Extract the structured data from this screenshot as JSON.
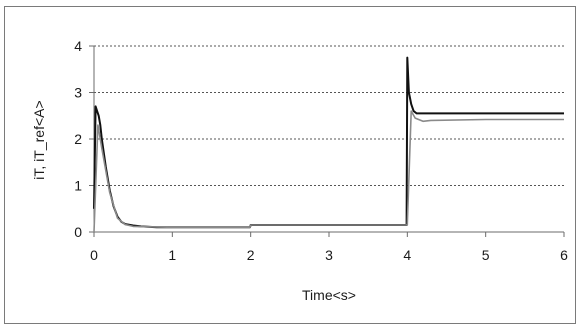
{
  "chart_data": {
    "type": "line",
    "xlabel": "Time<s>",
    "ylabel": "iT, iT_ref<A>",
    "xlim": [
      0,
      6
    ],
    "ylim": [
      0,
      4
    ],
    "x_ticks": [
      "0",
      "1",
      "2",
      "3",
      "4",
      "5",
      "6"
    ],
    "y_ticks": [
      "0",
      "1",
      "2",
      "3",
      "4"
    ],
    "grid": "horizontal dashed",
    "legend": "none",
    "colors": {
      "series_dark": "#111111",
      "series_ref": "#8a8a8a",
      "grid": "#555555",
      "axis": "#6b6b6b"
    },
    "series": [
      {
        "x": [
          0,
          0.02,
          0.04,
          0.06,
          0.08,
          0.1,
          0.15,
          0.2,
          0.25,
          0.3,
          0.35,
          0.4,
          0.5,
          0.6,
          0.8,
          1.0,
          1.5,
          1.99,
          2.0,
          2.5,
          3.0,
          3.5,
          3.99,
          4.0,
          4.02,
          4.05,
          4.08,
          4.12,
          4.2,
          4.5,
          5.0,
          5.5,
          6.0
        ],
        "y": [
          0.5,
          2.7,
          2.6,
          2.5,
          2.3,
          2.0,
          1.4,
          0.9,
          0.55,
          0.33,
          0.22,
          0.17,
          0.14,
          0.12,
          0.1,
          0.1,
          0.1,
          0.1,
          0.15,
          0.15,
          0.15,
          0.15,
          0.15,
          3.75,
          3.0,
          2.75,
          2.6,
          2.55,
          2.55,
          2.55,
          2.55,
          2.55,
          2.55
        ]
      },
      {
        "x": [
          0,
          0.05,
          0.1,
          0.2,
          0.3,
          0.4,
          0.5,
          1.0,
          1.99,
          2.0,
          3.0,
          3.99,
          4.0,
          4.05,
          4.1,
          4.2,
          4.3,
          5.0,
          6.0
        ],
        "y": [
          0,
          2.3,
          1.8,
          0.85,
          0.3,
          0.16,
          0.12,
          0.1,
          0.1,
          0.15,
          0.15,
          0.15,
          0.15,
          2.6,
          2.45,
          2.38,
          2.4,
          2.42,
          2.42
        ]
      }
    ]
  }
}
